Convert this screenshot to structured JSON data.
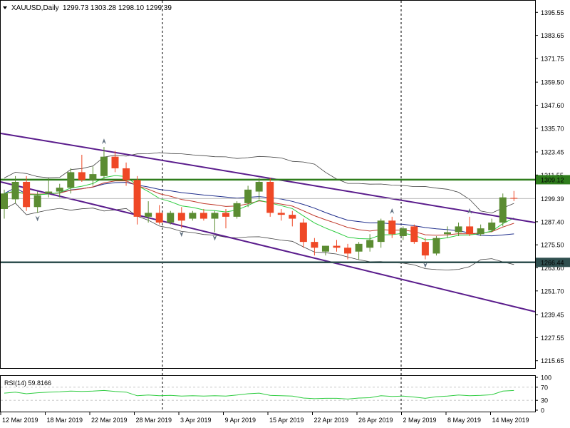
{
  "header": {
    "symbol": "XAUUSD,Daily",
    "ohlc": "1299.73 1303.28 1298.10 1299.39"
  },
  "rsi_label": "RSI(14) 59.8166",
  "colors": {
    "bull": "#5b8c32",
    "bear": "#ef4826",
    "trendline": "#5a1c8c",
    "support_resistance": "#2f7d1c",
    "support_dark": "#2f4f4f",
    "ma_blue": "#1f2e8c",
    "ma_red": "#c0392b",
    "ma_green": "#2ecc40",
    "bands": "#404040",
    "rsi": "#2ecc40"
  },
  "chart_data": {
    "type": "candlestick",
    "symbol": "XAUUSD",
    "timeframe": "Daily",
    "y_range": [
      1211.85,
      1401.55
    ],
    "y_ticks": [
      "1395.55",
      "1383.65",
      "1371.75",
      "1359.50",
      "1347.60",
      "1335.70",
      "1323.45",
      "1311.55",
      "1299.39",
      "1287.40",
      "1275.50",
      "1263.60",
      "1251.70",
      "1239.45",
      "1227.55",
      "1215.65"
    ],
    "x_ticks": [
      "12 Mar 2019",
      "18 Mar 2019",
      "22 Mar 2019",
      "28 Mar 2019",
      "3 Apr 2019",
      "9 Apr 2019",
      "15 Apr 2019",
      "22 Apr 2019",
      "26 Apr 2019",
      "2 May 2019",
      "8 May 2019",
      "14 May 2019"
    ],
    "price_labels": {
      "resistance": "1309.12",
      "current": "1299.39",
      "support": "1266.44"
    },
    "horizontal_levels": [
      1309.12,
      1266.44
    ],
    "candles": [
      {
        "o": 1294.0,
        "h": 1304.0,
        "l": 1289.0,
        "c": 1302.0
      },
      {
        "o": 1299.0,
        "h": 1311.0,
        "l": 1297.0,
        "c": 1308.0
      },
      {
        "o": 1308.0,
        "h": 1311.0,
        "l": 1293.0,
        "c": 1295.0
      },
      {
        "o": 1295.0,
        "h": 1303.0,
        "l": 1292.0,
        "c": 1301.0
      },
      {
        "o": 1302.0,
        "h": 1310.0,
        "l": 1300.0,
        "c": 1303.0
      },
      {
        "o": 1303.0,
        "h": 1307.0,
        "l": 1300.0,
        "c": 1305.0
      },
      {
        "o": 1305.0,
        "h": 1315.0,
        "l": 1302.0,
        "c": 1313.0
      },
      {
        "o": 1313.0,
        "h": 1322.0,
        "l": 1308.0,
        "c": 1309.0
      },
      {
        "o": 1309.0,
        "h": 1316.0,
        "l": 1306.0,
        "c": 1312.0
      },
      {
        "o": 1311.0,
        "h": 1326.0,
        "l": 1309.0,
        "c": 1321.0
      },
      {
        "o": 1321.0,
        "h": 1324.0,
        "l": 1313.0,
        "c": 1315.0
      },
      {
        "o": 1315.0,
        "h": 1318.0,
        "l": 1306.0,
        "c": 1309.0
      },
      {
        "o": 1309.0,
        "h": 1311.0,
        "l": 1286.0,
        "c": 1290.0
      },
      {
        "o": 1290.0,
        "h": 1298.0,
        "l": 1287.0,
        "c": 1292.0
      },
      {
        "o": 1292.0,
        "h": 1296.0,
        "l": 1286.0,
        "c": 1287.0
      },
      {
        "o": 1287.0,
        "h": 1293.0,
        "l": 1286.0,
        "c": 1292.0
      },
      {
        "o": 1292.0,
        "h": 1295.0,
        "l": 1284.0,
        "c": 1288.0
      },
      {
        "o": 1289.0,
        "h": 1293.0,
        "l": 1288.0,
        "c": 1292.0
      },
      {
        "o": 1292.0,
        "h": 1294.0,
        "l": 1288.0,
        "c": 1289.0
      },
      {
        "o": 1289.0,
        "h": 1293.0,
        "l": 1282.0,
        "c": 1292.0
      },
      {
        "o": 1292.0,
        "h": 1294.0,
        "l": 1284.0,
        "c": 1290.0
      },
      {
        "o": 1290.0,
        "h": 1298.0,
        "l": 1289.0,
        "c": 1297.0
      },
      {
        "o": 1297.0,
        "h": 1306.0,
        "l": 1295.0,
        "c": 1304.0
      },
      {
        "o": 1303.0,
        "h": 1310.0,
        "l": 1299.0,
        "c": 1308.0
      },
      {
        "o": 1308.0,
        "h": 1310.0,
        "l": 1290.0,
        "c": 1292.0
      },
      {
        "o": 1292.0,
        "h": 1294.0,
        "l": 1288.0,
        "c": 1291.0
      },
      {
        "o": 1291.0,
        "h": 1293.0,
        "l": 1285.0,
        "c": 1289.0
      },
      {
        "o": 1287.0,
        "h": 1289.0,
        "l": 1274.0,
        "c": 1277.0
      },
      {
        "o": 1277.0,
        "h": 1279.0,
        "l": 1270.0,
        "c": 1274.0
      },
      {
        "o": 1272.0,
        "h": 1275.0,
        "l": 1270.0,
        "c": 1275.0
      },
      {
        "o": 1275.0,
        "h": 1278.0,
        "l": 1272.0,
        "c": 1274.0
      },
      {
        "o": 1274.0,
        "h": 1276.0,
        "l": 1268.0,
        "c": 1271.0
      },
      {
        "o": 1272.0,
        "h": 1277.0,
        "l": 1268.0,
        "c": 1276.0
      },
      {
        "o": 1274.0,
        "h": 1281.0,
        "l": 1272.0,
        "c": 1278.0
      },
      {
        "o": 1277.0,
        "h": 1289.0,
        "l": 1274.0,
        "c": 1288.0
      },
      {
        "o": 1288.0,
        "h": 1290.0,
        "l": 1279.0,
        "c": 1281.0
      },
      {
        "o": 1280.0,
        "h": 1285.0,
        "l": 1278.0,
        "c": 1284.0
      },
      {
        "o": 1285.0,
        "h": 1286.0,
        "l": 1276.0,
        "c": 1277.0
      },
      {
        "o": 1277.0,
        "h": 1279.0,
        "l": 1268.0,
        "c": 1270.0
      },
      {
        "o": 1271.0,
        "h": 1280.0,
        "l": 1270.0,
        "c": 1279.0
      },
      {
        "o": 1281.0,
        "h": 1285.0,
        "l": 1279.0,
        "c": 1282.0
      },
      {
        "o": 1282.0,
        "h": 1287.0,
        "l": 1280.0,
        "c": 1285.0
      },
      {
        "o": 1285.0,
        "h": 1290.0,
        "l": 1280.0,
        "c": 1281.0
      },
      {
        "o": 1281.0,
        "h": 1286.0,
        "l": 1280.0,
        "c": 1284.0
      },
      {
        "o": 1283.0,
        "h": 1289.0,
        "l": 1282.0,
        "c": 1287.0
      },
      {
        "o": 1287.0,
        "h": 1302.0,
        "l": 1285.0,
        "c": 1300.0
      },
      {
        "o": 1299.7,
        "h": 1303.3,
        "l": 1298.1,
        "c": 1299.4
      }
    ],
    "rsi": {
      "name": "RSI(14)",
      "current": 59.8166,
      "levels": [
        30,
        70
      ],
      "y_ticks": [
        "100",
        "70",
        "30",
        "0"
      ],
      "values": [
        52,
        55,
        50,
        53,
        55,
        56,
        58,
        57,
        58,
        60,
        57,
        55,
        44,
        46,
        44,
        45,
        43,
        44,
        43,
        44,
        43,
        46,
        50,
        52,
        45,
        44,
        43,
        37,
        35,
        36,
        36,
        34,
        37,
        38,
        44,
        42,
        43,
        40,
        36,
        41,
        43,
        46,
        44,
        45,
        47,
        58,
        60
      ]
    }
  }
}
